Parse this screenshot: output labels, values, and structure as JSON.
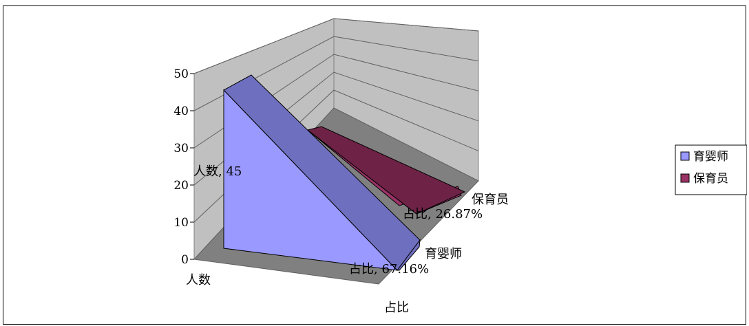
{
  "chart_data": {
    "type": "area",
    "three_d": true,
    "categories": [
      "人数",
      "占比"
    ],
    "series": [
      {
        "name": "育婴师",
        "values": [
          45,
          0.6716
        ],
        "color": "#9999ff",
        "dark_color": "#6f6fc0"
      },
      {
        "name": "保育员",
        "values": [
          18,
          0.2687
        ],
        "color": "#993366",
        "dark_color": "#6e2246"
      }
    ],
    "data_labels": [
      {
        "series": "育婴师",
        "text": "人数, 45"
      },
      {
        "series": "育婴师",
        "text": "占比, 67.16%"
      },
      {
        "series": "保育员",
        "text": "占比, 26.87%"
      }
    ],
    "y_ticks": [
      "0",
      "10",
      "20",
      "30",
      "40",
      "50"
    ],
    "ylim": [
      0,
      50
    ],
    "depth_labels": [
      "育婴师",
      "保育员"
    ],
    "grid": true,
    "legend_position": "right"
  }
}
